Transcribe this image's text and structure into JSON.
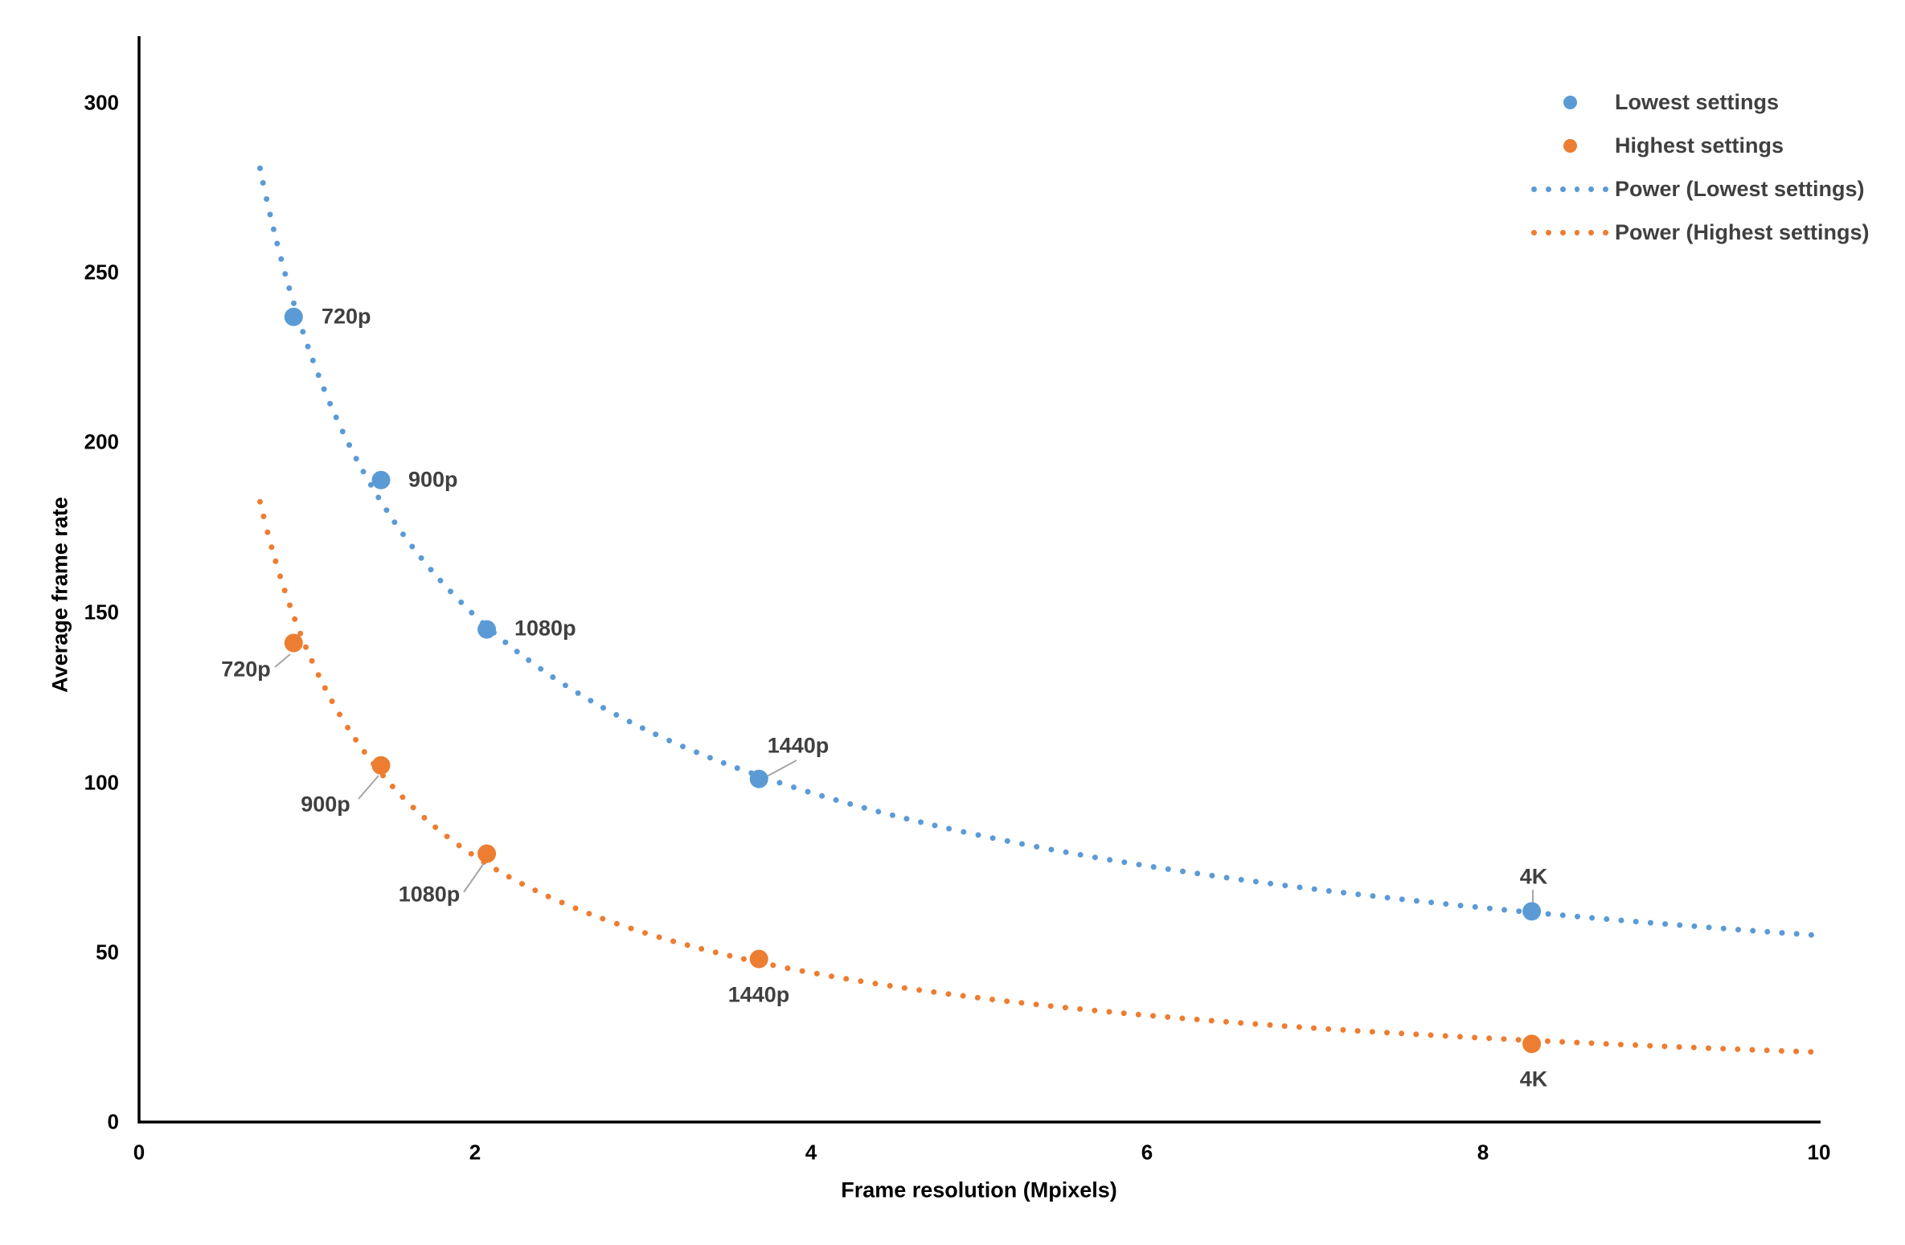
{
  "chart_data": {
    "type": "scatter",
    "title": "",
    "xlabel": "Frame resolution (Mpixels)",
    "ylabel": "Average frame rate",
    "xlim": [
      0,
      10
    ],
    "ylim": [
      0,
      300
    ],
    "grid": false,
    "legend_position": "top-right",
    "x_ticks": [
      "0",
      "2",
      "4",
      "6",
      "8",
      "10"
    ],
    "y_ticks": [
      "0",
      "50",
      "100",
      "150",
      "200",
      "250",
      "300"
    ],
    "series": [
      {
        "name": "Lowest settings",
        "color": "#5B9BD5",
        "points": [
          {
            "label": "720p",
            "x": 0.92,
            "y": 237
          },
          {
            "label": "900p",
            "x": 1.44,
            "y": 189
          },
          {
            "label": "1080p",
            "x": 2.07,
            "y": 145
          },
          {
            "label": "1440p",
            "x": 3.69,
            "y": 101
          },
          {
            "label": "4K",
            "x": 8.29,
            "y": 62
          }
        ]
      },
      {
        "name": "Highest settings",
        "color": "#ED7D31",
        "points": [
          {
            "label": "720p",
            "x": 0.92,
            "y": 141
          },
          {
            "label": "900p",
            "x": 1.44,
            "y": 105
          },
          {
            "label": "1080p",
            "x": 2.07,
            "y": 79
          },
          {
            "label": "1440p",
            "x": 3.69,
            "y": 48
          },
          {
            "label": "4K",
            "x": 8.29,
            "y": 23
          }
        ]
      }
    ],
    "trendlines": [
      {
        "name": "Power (Lowest settings)",
        "color": "#5B9BD5",
        "a": 229,
        "b": -0.62,
        "x_start": 0.72,
        "x_end": 10
      },
      {
        "name": "Power (Highest settings)",
        "color": "#ED7D31",
        "a": 139,
        "b": -0.83,
        "x_start": 0.72,
        "x_end": 10
      }
    ],
    "legend": [
      {
        "label": "Lowest settings",
        "marker": "circle",
        "color": "#5B9BD5"
      },
      {
        "label": "Highest settings",
        "marker": "circle",
        "color": "#ED7D31"
      },
      {
        "label": "Power (Lowest settings)",
        "marker": "dotted-line",
        "color": "#5B9BD5"
      },
      {
        "label": "Power (Highest settings)",
        "marker": "dotted-line",
        "color": "#ED7D31"
      }
    ]
  },
  "colors": {
    "background": "#FFFFFF",
    "axis_line": "#000000",
    "tick_text": "#000000",
    "data_label_text": "#404040",
    "legend_text": "#404040",
    "leader_line": "#A6A6A6"
  }
}
